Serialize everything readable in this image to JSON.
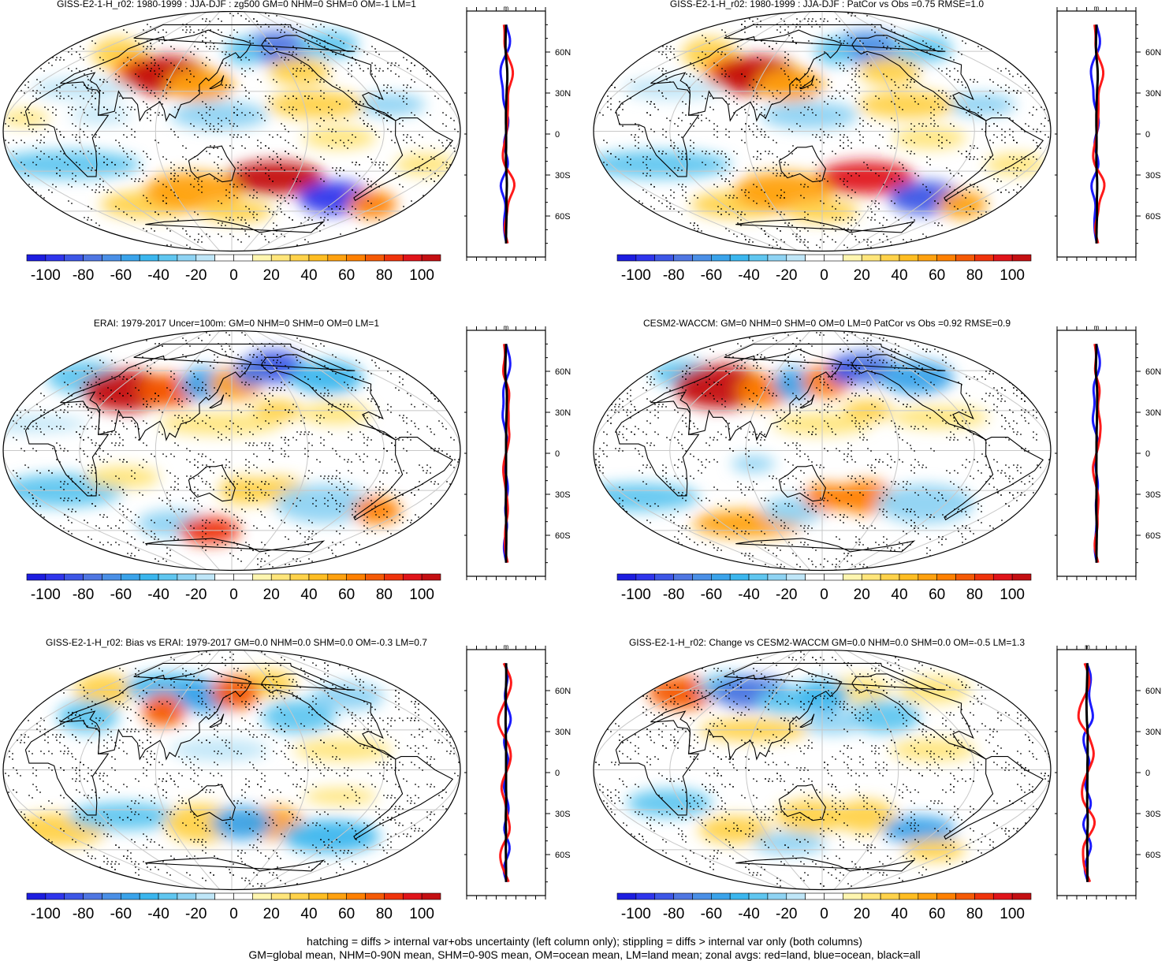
{
  "colorbar": {
    "labels": [
      "-100",
      "-80",
      "-60",
      "-40",
      "-20",
      "0",
      "20",
      "40",
      "60",
      "80",
      "100"
    ],
    "colors": [
      "#1d1de0",
      "#2f35ec",
      "#3d56e6",
      "#4f76e2",
      "#4a8fe6",
      "#3aa3ea",
      "#3bb6ee",
      "#5fc6f0",
      "#8ed3f3",
      "#bfe6f8",
      "#ffffff",
      "#ffffff",
      "#fff6b0",
      "#ffe57a",
      "#ffd24a",
      "#ffbd22",
      "#ffa10f",
      "#ff8000",
      "#f55a05",
      "#ef330b",
      "#e0141a",
      "#c40f12"
    ]
  },
  "panels": [
    {
      "title": "GISS-E2-1-H_r02: 1980-1999 : JJA-DJF : zg500 GM=0 NHM=0 SHM=0 OM=-1 LM=1",
      "xticks": [
        "-80",
        "0",
        "80"
      ],
      "xrange": [
        -100,
        100
      ],
      "lat_labels": [
        "60N",
        "30N",
        "0",
        "30S",
        "60S"
      ],
      "unit": "m",
      "blobs": [
        {
          "lon": -145,
          "lat": 63,
          "rlon": 30,
          "rlat": 12,
          "v": -80
        },
        {
          "lon": -65,
          "lat": 65,
          "rlon": 25,
          "rlat": 10,
          "v": -40
        },
        {
          "lon": 5,
          "lat": 58,
          "rlon": 22,
          "rlat": 12,
          "v": 30
        },
        {
          "lon": 15,
          "lat": 32,
          "rlon": 40,
          "rlat": 8,
          "v": -20
        },
        {
          "lon": 55,
          "lat": 45,
          "rlon": 22,
          "rlat": 12,
          "v": 60
        },
        {
          "lon": 85,
          "lat": 42,
          "rlon": 35,
          "rlat": 14,
          "v": 100
        },
        {
          "lon": 120,
          "lat": 35,
          "rlon": 28,
          "rlat": 12,
          "v": 50
        },
        {
          "lon": 140,
          "lat": 12,
          "rlon": 40,
          "rlat": 10,
          "v": -30
        },
        {
          "lon": -80,
          "lat": 20,
          "rlon": 30,
          "rlat": 8,
          "v": -30
        },
        {
          "lon": -140,
          "lat": 20,
          "rlon": 40,
          "rlat": 10,
          "v": 30
        },
        {
          "lon": 165,
          "lat": 60,
          "rlon": 15,
          "rlat": 10,
          "v": -40
        },
        {
          "lon": -140,
          "lat": 45,
          "rlon": 25,
          "rlat": 10,
          "v": 40
        },
        {
          "lon": 45,
          "lat": 12,
          "rlon": 25,
          "rlat": 6,
          "v": -20
        },
        {
          "lon": -15,
          "lat": 10,
          "rlon": 20,
          "rlat": 6,
          "v": 20
        },
        {
          "lon": -170,
          "lat": -35,
          "rlon": 40,
          "rlat": 12,
          "v": 100
        },
        {
          "lon": -95,
          "lat": -50,
          "rlon": 30,
          "rlat": 12,
          "v": -100
        },
        {
          "lon": -40,
          "lat": -55,
          "rlon": 20,
          "rlat": 10,
          "v": 60
        },
        {
          "lon": 10,
          "lat": -25,
          "rlon": 60,
          "rlat": 10,
          "v": -40
        },
        {
          "lon": 50,
          "lat": -55,
          "rlon": 40,
          "rlat": 10,
          "v": 30
        },
        {
          "lon": 110,
          "lat": -45,
          "rlon": 40,
          "rlat": 14,
          "v": 50
        },
        {
          "lon": 155,
          "lat": -60,
          "rlon": 30,
          "rlat": 8,
          "v": 40
        },
        {
          "lon": -45,
          "lat": -25,
          "rlon": 25,
          "rlat": 8,
          "v": 20
        },
        {
          "lon": -125,
          "lat": -5,
          "rlon": 30,
          "rlat": 8,
          "v": 20
        }
      ]
    },
    {
      "title": "GISS-E2-1-H_r02: 1980-1999 : JJA-DJF : PatCor vs Obs =0.75 RMSE=1.0",
      "xticks": [
        "-80",
        "0",
        "80"
      ],
      "xrange": [
        -100,
        100
      ],
      "lat_labels": [
        "60N",
        "30N",
        "0",
        "30S",
        "60S"
      ],
      "unit": "m",
      "blobs": [
        {
          "lon": -145,
          "lat": 63,
          "rlon": 30,
          "rlat": 12,
          "v": -70
        },
        {
          "lon": -70,
          "lat": 62,
          "rlon": 25,
          "rlat": 10,
          "v": -40
        },
        {
          "lon": 5,
          "lat": 58,
          "rlon": 22,
          "rlat": 12,
          "v": 30
        },
        {
          "lon": 15,
          "lat": 32,
          "rlon": 40,
          "rlat": 8,
          "v": -20
        },
        {
          "lon": 55,
          "lat": 45,
          "rlon": 22,
          "rlat": 12,
          "v": 60
        },
        {
          "lon": 85,
          "lat": 42,
          "rlon": 35,
          "rlat": 14,
          "v": 100
        },
        {
          "lon": 120,
          "lat": 35,
          "rlon": 28,
          "rlat": 12,
          "v": 50
        },
        {
          "lon": 140,
          "lat": 12,
          "rlon": 40,
          "rlat": 10,
          "v": -30
        },
        {
          "lon": -80,
          "lat": 20,
          "rlon": 30,
          "rlat": 8,
          "v": -30
        },
        {
          "lon": -140,
          "lat": 20,
          "rlon": 40,
          "rlat": 10,
          "v": 30
        },
        {
          "lon": 165,
          "lat": 60,
          "rlon": 15,
          "rlat": 10,
          "v": -40
        },
        {
          "lon": -140,
          "lat": 45,
          "rlon": 25,
          "rlat": 10,
          "v": 40
        },
        {
          "lon": -170,
          "lat": -35,
          "rlon": 40,
          "rlat": 12,
          "v": 90
        },
        {
          "lon": -95,
          "lat": -50,
          "rlon": 30,
          "rlat": 12,
          "v": -90
        },
        {
          "lon": -40,
          "lat": -55,
          "rlon": 20,
          "rlat": 10,
          "v": 50
        },
        {
          "lon": 10,
          "lat": -25,
          "rlon": 60,
          "rlat": 10,
          "v": -40
        },
        {
          "lon": 50,
          "lat": -55,
          "rlon": 40,
          "rlat": 10,
          "v": 40
        },
        {
          "lon": 110,
          "lat": -45,
          "rlon": 40,
          "rlat": 14,
          "v": 50
        },
        {
          "lon": 150,
          "lat": -60,
          "rlon": 30,
          "rlat": 8,
          "v": 40
        },
        {
          "lon": -45,
          "lat": -25,
          "rlon": 25,
          "rlat": 8,
          "v": 20
        },
        {
          "lon": -125,
          "lat": -5,
          "rlon": 30,
          "rlat": 8,
          "v": 20
        }
      ]
    },
    {
      "title": "ERAI: 1979-2017 Uncer=100m: GM=0 NHM=0 SHM=0 OM=0 LM=1",
      "xticks": [
        "-80",
        "0",
        "80"
      ],
      "xrange": [
        -100,
        100
      ],
      "lat_labels": [
        "60N",
        "30N",
        "0",
        "30S",
        "60S"
      ],
      "unit": "m",
      "blobs": [
        {
          "lon": -150,
          "lat": 63,
          "rlon": 25,
          "rlat": 12,
          "v": -90
        },
        {
          "lon": -95,
          "lat": 55,
          "rlon": 30,
          "rlat": 12,
          "v": -50
        },
        {
          "lon": -30,
          "lat": 55,
          "rlon": 30,
          "rlat": 12,
          "v": -40
        },
        {
          "lon": 40,
          "lat": 45,
          "rlon": 35,
          "rlat": 15,
          "v": 100
        },
        {
          "lon": 85,
          "lat": 45,
          "rlon": 25,
          "rlat": 12,
          "v": 70
        },
        {
          "lon": 120,
          "lat": 50,
          "rlon": 20,
          "rlat": 12,
          "v": -60
        },
        {
          "lon": 155,
          "lat": 50,
          "rlon": 22,
          "rlat": 12,
          "v": 50
        },
        {
          "lon": 175,
          "lat": 58,
          "rlon": 15,
          "rlat": 10,
          "v": -80
        },
        {
          "lon": -170,
          "lat": 30,
          "rlon": 20,
          "rlat": 8,
          "v": 30
        },
        {
          "lon": -120,
          "lat": 28,
          "rlon": 30,
          "rlat": 8,
          "v": 20
        },
        {
          "lon": 140,
          "lat": 20,
          "rlon": 50,
          "rlat": 8,
          "v": 20
        },
        {
          "lon": -20,
          "lat": 20,
          "rlon": 50,
          "rlat": 6,
          "v": -20
        },
        {
          "lon": -170,
          "lat": -30,
          "rlon": 25,
          "rlat": 10,
          "v": 40
        },
        {
          "lon": -120,
          "lat": -40,
          "rlon": 40,
          "rlat": 14,
          "v": -30
        },
        {
          "lon": -60,
          "lat": -45,
          "rlon": 20,
          "rlat": 10,
          "v": 60
        },
        {
          "lon": 0,
          "lat": -30,
          "rlon": 50,
          "rlat": 12,
          "v": -40
        },
        {
          "lon": 60,
          "lat": -20,
          "rlon": 30,
          "rlat": 8,
          "v": 20
        },
        {
          "lon": 80,
          "lat": -55,
          "rlon": 30,
          "rlat": 10,
          "v": -30
        },
        {
          "lon": 120,
          "lat": -60,
          "rlon": 25,
          "rlat": 10,
          "v": 80
        },
        {
          "lon": 160,
          "lat": -30,
          "rlon": 20,
          "rlat": 10,
          "v": 30
        }
      ]
    },
    {
      "title": "CESM2-WACCM: GM=0 NHM=0 SHM=0 OM=0 LM=0 PatCor vs Obs =0.92 RMSE=0.9",
      "xticks": [
        "-80",
        "0",
        "80"
      ],
      "xrange": [
        -100,
        100
      ],
      "lat_labels": [
        "60N",
        "30N",
        "0",
        "30S",
        "60S"
      ],
      "unit": "m",
      "blobs": [
        {
          "lon": -150,
          "lat": 62,
          "rlon": 25,
          "rlat": 12,
          "v": -80
        },
        {
          "lon": -95,
          "lat": 55,
          "rlon": 30,
          "rlat": 12,
          "v": -60
        },
        {
          "lon": -30,
          "lat": 58,
          "rlon": 25,
          "rlat": 10,
          "v": -40
        },
        {
          "lon": 40,
          "lat": 48,
          "rlon": 38,
          "rlat": 16,
          "v": 100
        },
        {
          "lon": 90,
          "lat": 45,
          "rlon": 22,
          "rlat": 12,
          "v": 60
        },
        {
          "lon": 120,
          "lat": 50,
          "rlon": 18,
          "rlat": 12,
          "v": -60
        },
        {
          "lon": 155,
          "lat": 52,
          "rlon": 20,
          "rlat": 12,
          "v": 60
        },
        {
          "lon": 178,
          "lat": 60,
          "rlon": 12,
          "rlat": 10,
          "v": -90
        },
        {
          "lon": -170,
          "lat": 30,
          "rlon": 20,
          "rlat": 8,
          "v": 30
        },
        {
          "lon": -110,
          "lat": 25,
          "rlon": 40,
          "rlat": 8,
          "v": 20
        },
        {
          "lon": 150,
          "lat": 20,
          "rlon": 40,
          "rlat": 8,
          "v": 20
        },
        {
          "lon": 95,
          "lat": -10,
          "rlon": 18,
          "rlat": 6,
          "v": -30
        },
        {
          "lon": -170,
          "lat": -35,
          "rlon": 25,
          "rlat": 12,
          "v": 60
        },
        {
          "lon": -110,
          "lat": -40,
          "rlon": 40,
          "rlat": 14,
          "v": -30
        },
        {
          "lon": -20,
          "lat": -35,
          "rlon": 50,
          "rlat": 10,
          "v": -40
        },
        {
          "lon": 60,
          "lat": -55,
          "rlon": 45,
          "rlat": 10,
          "v": 50
        },
        {
          "lon": 120,
          "lat": -45,
          "rlon": 25,
          "rlat": 10,
          "v": -30
        },
        {
          "lon": 155,
          "lat": -35,
          "rlon": 20,
          "rlat": 10,
          "v": 60
        }
      ]
    },
    {
      "title": "GISS-E2-1-H_r02: Bias vs ERAI: 1979-2017 GM=0.0 NHM=0.0 SHM=0.0 OM=-0.3 LM=0.7",
      "xticks": [
        "-20",
        "0",
        "20"
      ],
      "xrange": [
        -25,
        25
      ],
      "lat_labels": [
        "60N",
        "30N",
        "0",
        "30S",
        "60S"
      ],
      "unit": "m",
      "blobs": [
        {
          "lon": -160,
          "lat": 65,
          "rlon": 25,
          "rlat": 10,
          "v": 40
        },
        {
          "lon": -145,
          "lat": 40,
          "rlon": 30,
          "rlat": 12,
          "v": -40
        },
        {
          "lon": -70,
          "lat": 55,
          "rlon": 30,
          "rlat": 10,
          "v": -30
        },
        {
          "lon": -20,
          "lat": 60,
          "rlon": 25,
          "rlat": 12,
          "v": 40
        },
        {
          "lon": 10,
          "lat": 40,
          "rlon": 25,
          "rlat": 12,
          "v": -40
        },
        {
          "lon": 60,
          "lat": 62,
          "rlon": 35,
          "rlat": 10,
          "v": -50
        },
        {
          "lon": 80,
          "lat": 45,
          "rlon": 18,
          "rlat": 12,
          "v": 70
        },
        {
          "lon": 120,
          "lat": 55,
          "rlon": 25,
          "rlat": 12,
          "v": -60
        },
        {
          "lon": 155,
          "lat": 58,
          "rlon": 20,
          "rlat": 12,
          "v": 70
        },
        {
          "lon": -120,
          "lat": 15,
          "rlon": 40,
          "rlat": 8,
          "v": 20
        },
        {
          "lon": 140,
          "lat": 15,
          "rlon": 40,
          "rlat": 8,
          "v": -20
        },
        {
          "lon": -170,
          "lat": -40,
          "rlon": 25,
          "rlat": 12,
          "v": 50
        },
        {
          "lon": -100,
          "lat": -50,
          "rlon": 40,
          "rlat": 12,
          "v": -50
        },
        {
          "lon": -30,
          "lat": -45,
          "rlon": 40,
          "rlat": 12,
          "v": 40
        },
        {
          "lon": 50,
          "lat": -35,
          "rlon": 45,
          "rlat": 10,
          "v": -40
        },
        {
          "lon": 120,
          "lat": -40,
          "rlon": 30,
          "rlat": 14,
          "v": 30
        },
        {
          "lon": 160,
          "lat": -40,
          "rlon": 25,
          "rlat": 12,
          "v": -60
        },
        {
          "lon": -120,
          "lat": -20,
          "rlon": 30,
          "rlat": 6,
          "v": 20
        }
      ]
    },
    {
      "title": "GISS-E2-1-H_r02: Change vs CESM2-WACCM GM=0.0 NHM=0.0 SHM=0.0 OM=-0.5 LM=1.3",
      "xticks": [
        "-20",
        "20"
      ],
      "xrange": [
        -25,
        40
      ],
      "lat_labels": [
        "60N",
        "30N",
        "0",
        "30S",
        "60S"
      ],
      "unit": "m",
      "blobs": [
        {
          "lon": -160,
          "lat": 60,
          "rlon": 25,
          "rlat": 10,
          "v": 20
        },
        {
          "lon": -150,
          "lat": 40,
          "rlon": 30,
          "rlat": 12,
          "v": -40
        },
        {
          "lon": -60,
          "lat": 60,
          "rlon": 30,
          "rlat": 10,
          "v": 20
        },
        {
          "lon": -30,
          "lat": 58,
          "rlon": 28,
          "rlat": 12,
          "v": 70
        },
        {
          "lon": 20,
          "lat": 62,
          "rlon": 25,
          "rlat": 10,
          "v": -40
        },
        {
          "lon": 60,
          "lat": 58,
          "rlon": 32,
          "rlat": 12,
          "v": -80
        },
        {
          "lon": 110,
          "lat": 52,
          "rlon": 25,
          "rlat": 10,
          "v": -40
        },
        {
          "lon": 90,
          "lat": 30,
          "rlon": 45,
          "rlat": 8,
          "v": 40
        },
        {
          "lon": 150,
          "lat": 55,
          "rlon": 22,
          "rlat": 12,
          "v": -50
        },
        {
          "lon": 160,
          "lat": 35,
          "rlon": 25,
          "rlat": 8,
          "v": -30
        },
        {
          "lon": -120,
          "lat": 15,
          "rlon": 35,
          "rlat": 8,
          "v": 20
        },
        {
          "lon": -170,
          "lat": -35,
          "rlon": 25,
          "rlat": 12,
          "v": 30
        },
        {
          "lon": -110,
          "lat": -45,
          "rlon": 30,
          "rlat": 10,
          "v": -60
        },
        {
          "lon": -60,
          "lat": -60,
          "rlon": 25,
          "rlat": 8,
          "v": 30
        },
        {
          "lon": 20,
          "lat": -25,
          "rlon": 35,
          "rlat": 10,
          "v": -40
        },
        {
          "lon": 60,
          "lat": -45,
          "rlon": 30,
          "rlat": 10,
          "v": 30
        },
        {
          "lon": 140,
          "lat": -35,
          "rlon": 30,
          "rlat": 12,
          "v": 40
        },
        {
          "lon": 110,
          "lat": -55,
          "rlon": 30,
          "rlat": 8,
          "v": -30
        }
      ]
    }
  ],
  "footer": {
    "line1": "hatching = diffs > internal var+obs uncertainty (left column only); stippling = diffs > internal var only (both columns)",
    "line2": "GM=global mean, NHM=0-90N mean, SHM=0-90S mean, OM=ocean mean, LM=land mean; zonal avgs: red=land, blue=ocean, black=all"
  }
}
